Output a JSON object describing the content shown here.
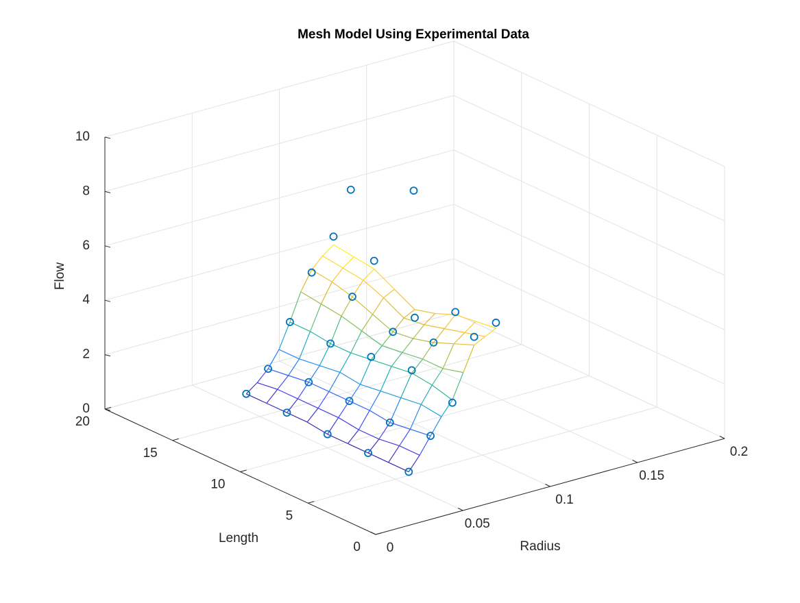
{
  "chart_data": {
    "type": "mesh3d",
    "title": "Mesh Model Using Experimental Data",
    "xlabel": "Radius",
    "ylabel": "Length",
    "zlabel": "Flow",
    "xlim": [
      0,
      0.2
    ],
    "ylim": [
      0,
      20
    ],
    "zlim": [
      0,
      10
    ],
    "xticks": [
      0,
      0.05,
      0.1,
      0.15,
      0.2
    ],
    "yticks": [
      0,
      5,
      10,
      15,
      20
    ],
    "zticks": [
      0,
      2,
      4,
      6,
      8,
      10
    ],
    "grid": true,
    "colormap": [
      "#3e26a8",
      "#4743f8",
      "#2d7bfe",
      "#1ca6d3",
      "#26b89f",
      "#7cc168",
      "#d5bb2d",
      "#fcc83b",
      "#f9fb15"
    ],
    "mesh": {
      "x": [
        0.05,
        0.05625,
        0.0625,
        0.06875,
        0.075,
        0.08125,
        0.0875,
        0.09375,
        0.1
      ],
      "y": [
        4,
        5.5,
        7,
        8.5,
        10,
        11.5,
        13,
        14.5,
        16
      ],
      "z": [
        [
          0.5,
          1.0,
          1.6,
          2.2,
          2.7,
          3.6,
          4.5,
          4.7,
          4.9
        ],
        [
          0.5,
          1.0,
          1.5,
          2.3,
          2.9,
          3.4,
          4.2,
          4.5,
          4.8
        ],
        [
          0.5,
          0.9,
          1.4,
          2.2,
          3.0,
          3.4,
          3.9,
          4.3,
          4.7
        ],
        [
          0.5,
          0.9,
          1.5,
          2.1,
          2.9,
          3.3,
          3.7,
          4.1,
          4.4
        ],
        [
          0.5,
          1.0,
          1.5,
          2.0,
          2.8,
          3.2,
          3.6,
          4.0,
          4.2
        ],
        [
          0.6,
          1.0,
          1.5,
          2.1,
          2.7,
          3.4,
          3.9,
          4.4,
          4.6
        ],
        [
          0.6,
          1.0,
          1.5,
          2.0,
          2.7,
          3.6,
          4.2,
          4.7,
          5.0
        ],
        [
          0.6,
          1.0,
          1.4,
          1.9,
          2.8,
          3.7,
          4.4,
          4.8,
          5.1
        ],
        [
          0.6,
          0.9,
          1.3,
          1.9,
          2.8,
          3.8,
          4.5,
          4.9,
          5.2
        ]
      ]
    },
    "scatter": {
      "color": "#0072bd",
      "x": [
        0.05,
        0.05,
        0.05,
        0.05,
        0.05,
        0.0625,
        0.0625,
        0.0625,
        0.0625,
        0.0625,
        0.075,
        0.075,
        0.075,
        0.075,
        0.075,
        0.0875,
        0.0875,
        0.0875,
        0.0875,
        0.0875,
        0.1,
        0.1,
        0.1,
        0.1,
        0.1,
        0.08,
        0.075
      ],
      "y": [
        4,
        7,
        10,
        13,
        16,
        4,
        7,
        10,
        13,
        16,
        4,
        7,
        10,
        13,
        16,
        4,
        7,
        10,
        13,
        16,
        4,
        7,
        10,
        13,
        16,
        7.5,
        11.5
      ],
      "z": [
        0.5,
        0.5,
        0.5,
        0.6,
        0.6,
        1.6,
        1.4,
        1.5,
        1.5,
        1.3,
        2.6,
        3.1,
        2.9,
        2.7,
        2.8,
        4.8,
        3.9,
        3.6,
        4.2,
        4.4,
        5.1,
        4.8,
        3.9,
        5.3,
        5.5,
        9.5,
        8.7
      ]
    }
  }
}
